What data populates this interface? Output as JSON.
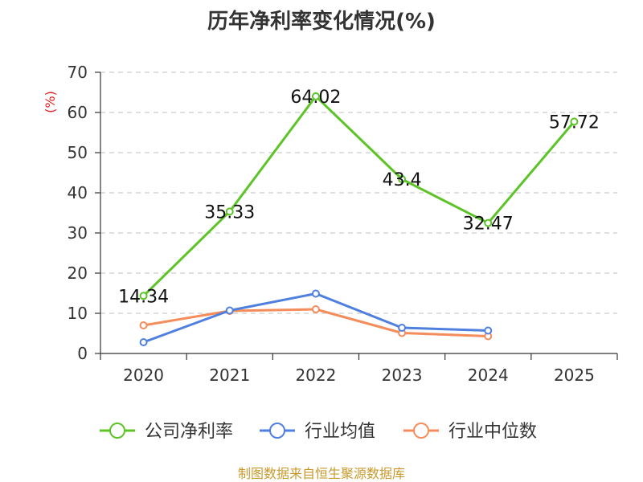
{
  "chart_data": {
    "type": "line",
    "title": "历年净利率变化情况(%)",
    "ylabel": "(%)",
    "xlabel": "",
    "categories": [
      "2020",
      "2021",
      "2022",
      "2023",
      "2024",
      "2025"
    ],
    "ylim": [
      0,
      70
    ],
    "yticks": [
      "0",
      "10",
      "20",
      "30",
      "40",
      "50",
      "60",
      "70"
    ],
    "grid": true,
    "legend_position": "bottom",
    "series": [
      {
        "name": "公司净利率",
        "color": "#5cc426",
        "values": [
          14.34,
          35.33,
          64.02,
          43.4,
          32.47,
          57.72
        ],
        "labels": [
          "14.34",
          "35.33",
          "64.02",
          "43.4",
          "32.47",
          "57.72"
        ]
      },
      {
        "name": "行业均值",
        "color": "#4f7fdf",
        "values": [
          2.8,
          10.7,
          14.9,
          6.4,
          5.7,
          null
        ]
      },
      {
        "name": "行业中位数",
        "color": "#f58c5b",
        "values": [
          7.0,
          10.6,
          11.0,
          5.1,
          4.3,
          null
        ]
      }
    ]
  },
  "footer": {
    "source": "制图数据来自恒生聚源数据库"
  }
}
